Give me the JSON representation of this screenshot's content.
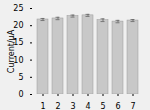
{
  "chart_data": {
    "type": "bar",
    "categories": [
      "1",
      "2",
      "3",
      "4",
      "5",
      "6",
      "7"
    ],
    "values": [
      21.8,
      22.1,
      22.8,
      23.0,
      21.6,
      21.2,
      21.5
    ],
    "errors": [
      0.3,
      0.35,
      0.3,
      0.3,
      0.4,
      0.35,
      0.3
    ],
    "color": "#c8c8c8",
    "ylabel": "Current/μA",
    "ylim": [
      0,
      25
    ],
    "yticks": [
      0,
      5,
      10,
      15,
      20,
      25
    ],
    "grid": false
  }
}
